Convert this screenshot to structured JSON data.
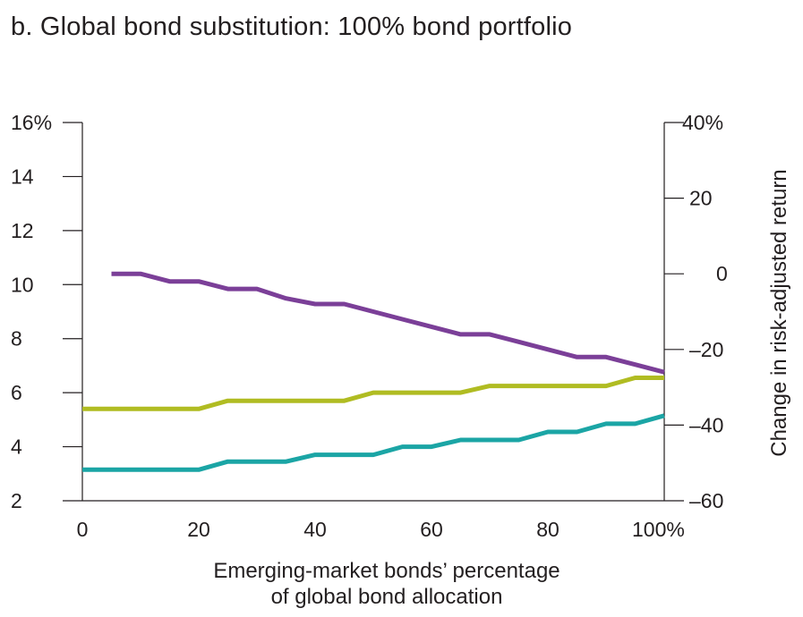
{
  "chart_data": {
    "type": "line",
    "title": "b. Global bond substitution: 100% bond portfolio",
    "xlabel": [
      "Emerging-market bonds’ percentage",
      "of global bond allocation"
    ],
    "ylabel_right": "Change in risk-adjusted return",
    "xlim": [
      0,
      100
    ],
    "ylim_left": [
      2,
      16
    ],
    "ylim_right": [
      -60,
      40
    ],
    "x_ticks": [
      0,
      20,
      40,
      60,
      80,
      100
    ],
    "x_tick_labels": [
      "0",
      "20",
      "40",
      "60",
      "80",
      "100%"
    ],
    "y_left_ticks": [
      2,
      4,
      6,
      8,
      10,
      12,
      14,
      16
    ],
    "y_left_tick_labels": [
      "2",
      "4",
      "6",
      "8",
      "10",
      "12",
      "14",
      "16%"
    ],
    "y_right_ticks": [
      -60,
      -40,
      -20,
      0,
      20,
      40
    ],
    "y_right_tick_labels": [
      "–60",
      "–40",
      "–20",
      "0",
      "20",
      "40%"
    ],
    "grid": false,
    "series": [
      {
        "axis": "right",
        "color": "#7b3f98",
        "x": [
          5,
          10,
          15,
          20,
          25,
          30,
          35,
          40,
          45,
          50,
          55,
          60,
          65,
          70,
          75,
          80,
          85,
          90,
          95,
          100
        ],
        "values": [
          0,
          0,
          -2,
          -2,
          -4,
          -4,
          -6.5,
          -8,
          -8,
          -10,
          -12,
          -14,
          -16,
          -16,
          -18,
          -20,
          -22,
          -22,
          -24,
          -26
        ]
      },
      {
        "axis": "left",
        "color": "#b0bc22",
        "x": [
          0,
          5,
          10,
          15,
          20,
          25,
          30,
          35,
          40,
          45,
          50,
          55,
          60,
          65,
          70,
          75,
          80,
          85,
          90,
          95,
          100
        ],
        "values": [
          5.4,
          5.4,
          5.4,
          5.4,
          5.4,
          5.7,
          5.7,
          5.7,
          5.7,
          5.7,
          6.0,
          6.0,
          6.0,
          6.0,
          6.25,
          6.25,
          6.25,
          6.25,
          6.25,
          6.55,
          6.55
        ]
      },
      {
        "axis": "left",
        "color": "#1ba5a5",
        "x": [
          0,
          5,
          10,
          15,
          20,
          25,
          30,
          35,
          40,
          45,
          50,
          55,
          60,
          65,
          70,
          75,
          80,
          85,
          90,
          95,
          100
        ],
        "values": [
          3.15,
          3.15,
          3.15,
          3.15,
          3.15,
          3.45,
          3.45,
          3.45,
          3.7,
          3.7,
          3.7,
          4.0,
          4.0,
          4.25,
          4.25,
          4.25,
          4.55,
          4.55,
          4.85,
          4.85,
          5.15
        ]
      }
    ]
  }
}
